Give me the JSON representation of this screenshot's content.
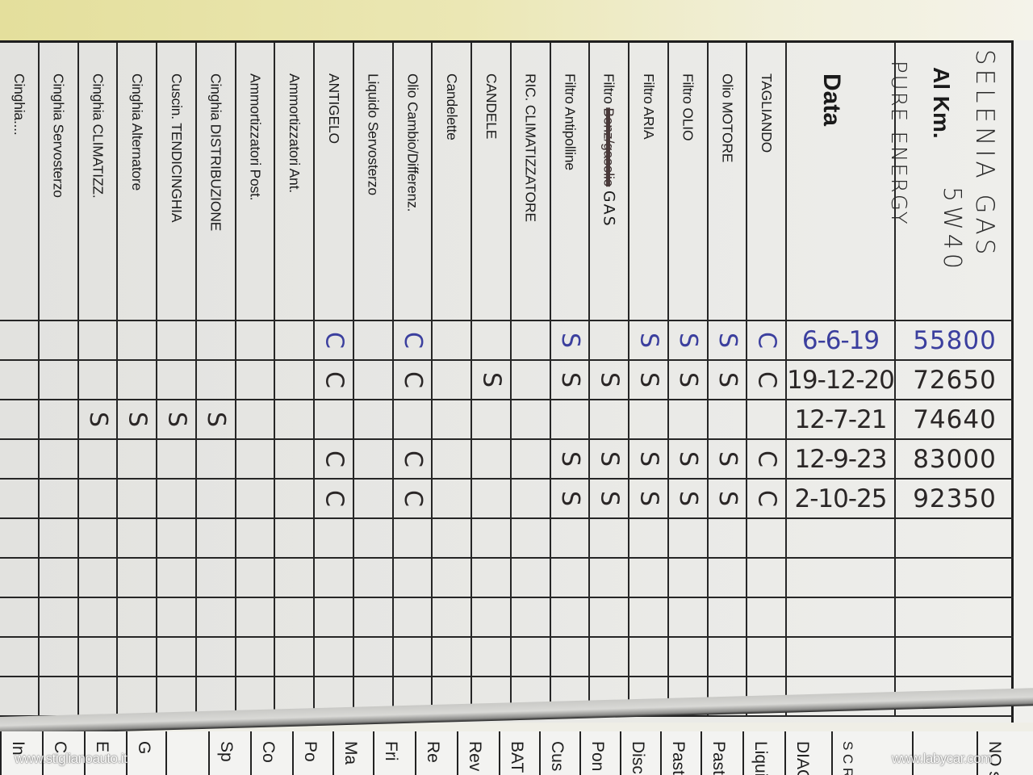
{
  "header": {
    "date_label": "Data",
    "km_label": "Al Km.",
    "handwritten_note": [
      "SELENIA GAS",
      "5W40",
      "PURE ENERGY"
    ]
  },
  "items": [
    {
      "label": "TAGLIANDO"
    },
    {
      "label": "Olio MOTORE"
    },
    {
      "label": "Filtro OLIO"
    },
    {
      "label": "Filtro ARIA"
    },
    {
      "label": "Filtro",
      "struck": "Benz/gasolio",
      "note": "GAS"
    },
    {
      "label": "Filtro Antipolline"
    },
    {
      "label": "RIC. CLIMATIZZATORE"
    },
    {
      "label": "CANDELE"
    },
    {
      "label": "Candelette"
    },
    {
      "label": "Olio Cambio/Differenz."
    },
    {
      "label": "Liquido Servosterzo"
    },
    {
      "label": "ANTIGELO"
    },
    {
      "label": "Ammortizzatori Ant."
    },
    {
      "label": "Ammortizzatori Post."
    },
    {
      "label": "Cinghia DISTRIBUZIONE"
    },
    {
      "label": "Cuscin. TENDICINGHIA"
    },
    {
      "label": "Cinghia Alternatore"
    },
    {
      "label": "Cinghia CLIMATIZZ."
    },
    {
      "label": "Cinghia Servosterzo"
    },
    {
      "label": "Cinghia...."
    }
  ],
  "entries": [
    {
      "date": "6-6-19",
      "km": "55800",
      "ink": "#3b3f9e",
      "marks": {
        "0": "C",
        "1": "S",
        "2": "S",
        "3": "S",
        "5": "S",
        "9": "C",
        "11": "C"
      }
    },
    {
      "date": "19-12-20",
      "km": "72650",
      "ink": "#2a2626",
      "marks": {
        "0": "C",
        "1": "S",
        "2": "S",
        "3": "S",
        "4": "S",
        "5": "S",
        "7": "S",
        "9": "C",
        "11": "C"
      }
    },
    {
      "date": "12-7-21",
      "km": "74640",
      "ink": "#2a2626",
      "marks": {
        "14": "S",
        "15": "S",
        "16": "S",
        "17": "S"
      }
    },
    {
      "date": "12-9-23",
      "km": "83000",
      "ink": "#2a2626",
      "marks": {
        "0": "C",
        "1": "S",
        "2": "S",
        "3": "S",
        "4": "S",
        "5": "S",
        "9": "C",
        "11": "C"
      }
    },
    {
      "date": "2-10-25",
      "km": "92350",
      "ink": "#2a2626",
      "marks": {
        "0": "C",
        "1": "S",
        "2": "S",
        "3": "S",
        "4": "S",
        "5": "S",
        "9": "C",
        "11": "C"
      }
    }
  ],
  "next_page_labels": [
    "In",
    "C",
    "E",
    "G",
    "",
    "Sp",
    "Co",
    "Po",
    "Ma",
    "Fri",
    "Re",
    "Rev",
    "BAT",
    "Cus",
    "Pon",
    "Disc",
    "Past",
    "Past",
    "Liqui",
    "DIAG",
    "S C R- P-",
    "",
    "NO se"
  ],
  "watermarks": [
    "www.stiglianoauto.it",
    "www.labycar.com"
  ]
}
